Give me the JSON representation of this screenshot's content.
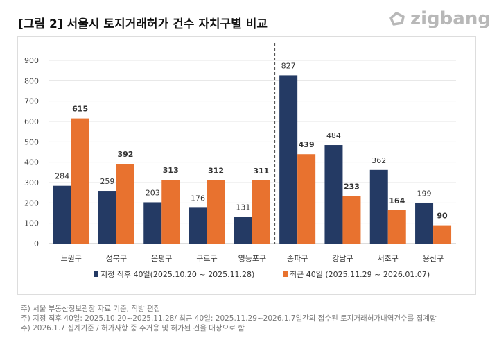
{
  "title": "[그림 2] 서울시 토지거래허가 건수 자치구별 비교",
  "logo": "zigbang",
  "chart_data": {
    "type": "bar",
    "categories": [
      "노원구",
      "성북구",
      "은평구",
      "구로구",
      "영등포구",
      "송파구",
      "강남구",
      "서초구",
      "용산구"
    ],
    "series": [
      {
        "name": "지정 직후 40일(2025.10.20 ~ 2025.11.28)",
        "color": "#243a64",
        "values": [
          284,
          259,
          203,
          176,
          131,
          827,
          484,
          362,
          199
        ]
      },
      {
        "name": "최근 40일 (2025.11.29 ~ 2026.01.07)",
        "color": "#e8722f",
        "values": [
          615,
          392,
          313,
          312,
          311,
          439,
          233,
          164,
          90
        ]
      }
    ],
    "ylim": [
      0,
      900
    ],
    "yticks": [
      0,
      100,
      200,
      300,
      400,
      500,
      600,
      700,
      800,
      900
    ],
    "grid": true,
    "legend": "bottom",
    "divider_after": "영등포구"
  },
  "notes": [
    "주) 서울 부동산정보광장 자료 기준, 직방 편집",
    "주) 지정 직후 40일: 2025.10.20~2025.11.28/ 최근 40일: 2025.11.29~2026.1.7일간의  접수된 토지거래허가내역건수를 집계함",
    "주) 2026.1.7 집계기준 / 허가사항 중 주거용 및 허가된 건을 대상으로 함"
  ]
}
